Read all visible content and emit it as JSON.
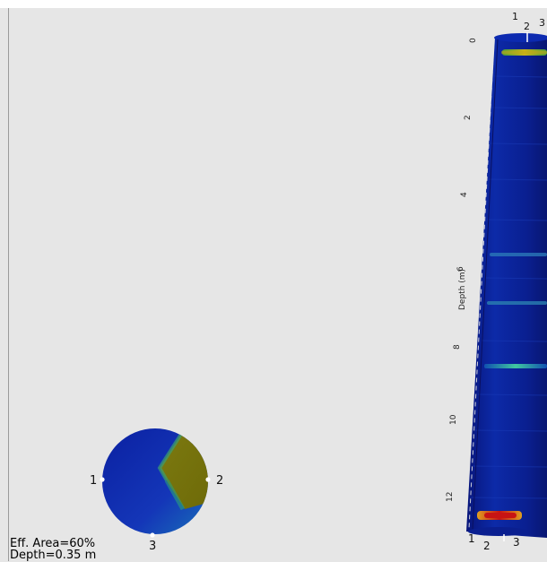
{
  "cross_section": {
    "sensor_labels": [
      "1",
      "2",
      "3"
    ]
  },
  "column": {
    "axis_label": "Depth (m)",
    "depth_ticks": [
      "0",
      "2",
      "4",
      "6",
      "8",
      "10",
      "12"
    ],
    "top_sensor_labels": [
      "1",
      "2",
      "3"
    ],
    "bottom_sensor_labels": [
      "1",
      "2",
      "3"
    ]
  },
  "info": {
    "eff_area": "Eff. Area=60%",
    "depth": "Depth=0.35 m"
  },
  "colors": {
    "background": "#e6e6e6",
    "low": "#0a1a9a",
    "mid": "#2a8ab0",
    "high": "#7a7a10",
    "hot": "#c81414"
  }
}
